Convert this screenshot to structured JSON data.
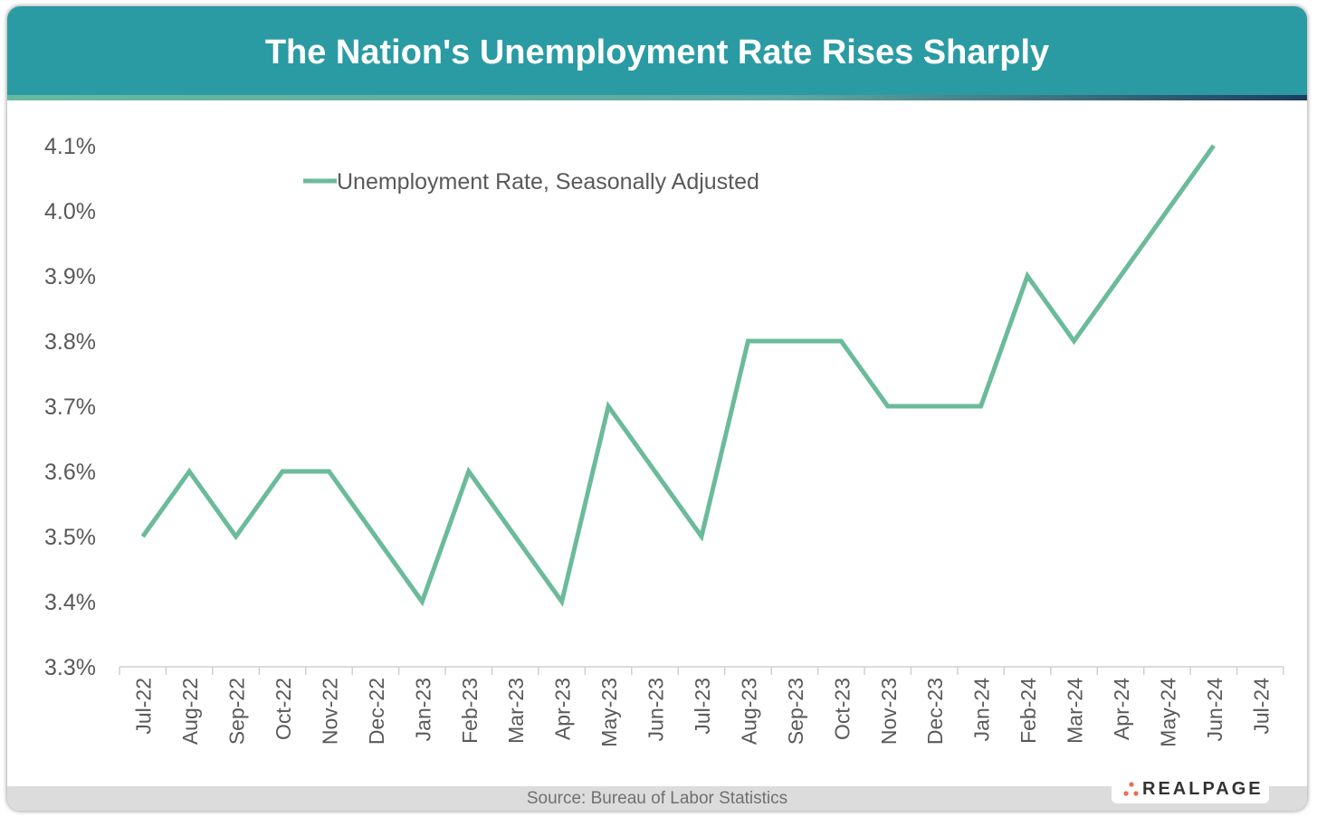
{
  "chart_data": {
    "type": "line",
    "title": "The Nation's Unemployment Rate Rises Sharply",
    "categories": [
      "Jul-22",
      "Aug-22",
      "Sep-22",
      "Oct-22",
      "Nov-22",
      "Dec-22",
      "Jan-23",
      "Feb-23",
      "Mar-23",
      "Apr-23",
      "May-23",
      "Jun-23",
      "Jul-23",
      "Aug-23",
      "Sep-23",
      "Oct-23",
      "Nov-23",
      "Dec-23",
      "Jan-24",
      "Feb-24",
      "Mar-24",
      "Apr-24",
      "May-24",
      "Jun-24",
      "Jul-24"
    ],
    "series": [
      {
        "name": "Unemployment Rate, Seasonally Adjusted",
        "values": [
          3.5,
          3.6,
          3.5,
          3.6,
          3.6,
          3.5,
          3.4,
          3.6,
          3.5,
          3.4,
          3.7,
          3.6,
          3.5,
          3.8,
          3.8,
          3.8,
          3.7,
          3.7,
          3.7,
          3.9,
          3.8,
          3.9,
          4.0,
          4.1,
          null
        ],
        "color": "#6bbb9b"
      }
    ],
    "ylim": [
      3.3,
      4.1
    ],
    "yticks": [
      "3.3%",
      "3.4%",
      "3.5%",
      "3.6%",
      "3.7%",
      "3.8%",
      "3.9%",
      "4.0%",
      "4.1%"
    ],
    "grid": false,
    "legend": "top-left",
    "source": "Source: Bureau of Labor Statistics"
  },
  "header_color": "#2b9ba3",
  "logo": "REALPAGE"
}
